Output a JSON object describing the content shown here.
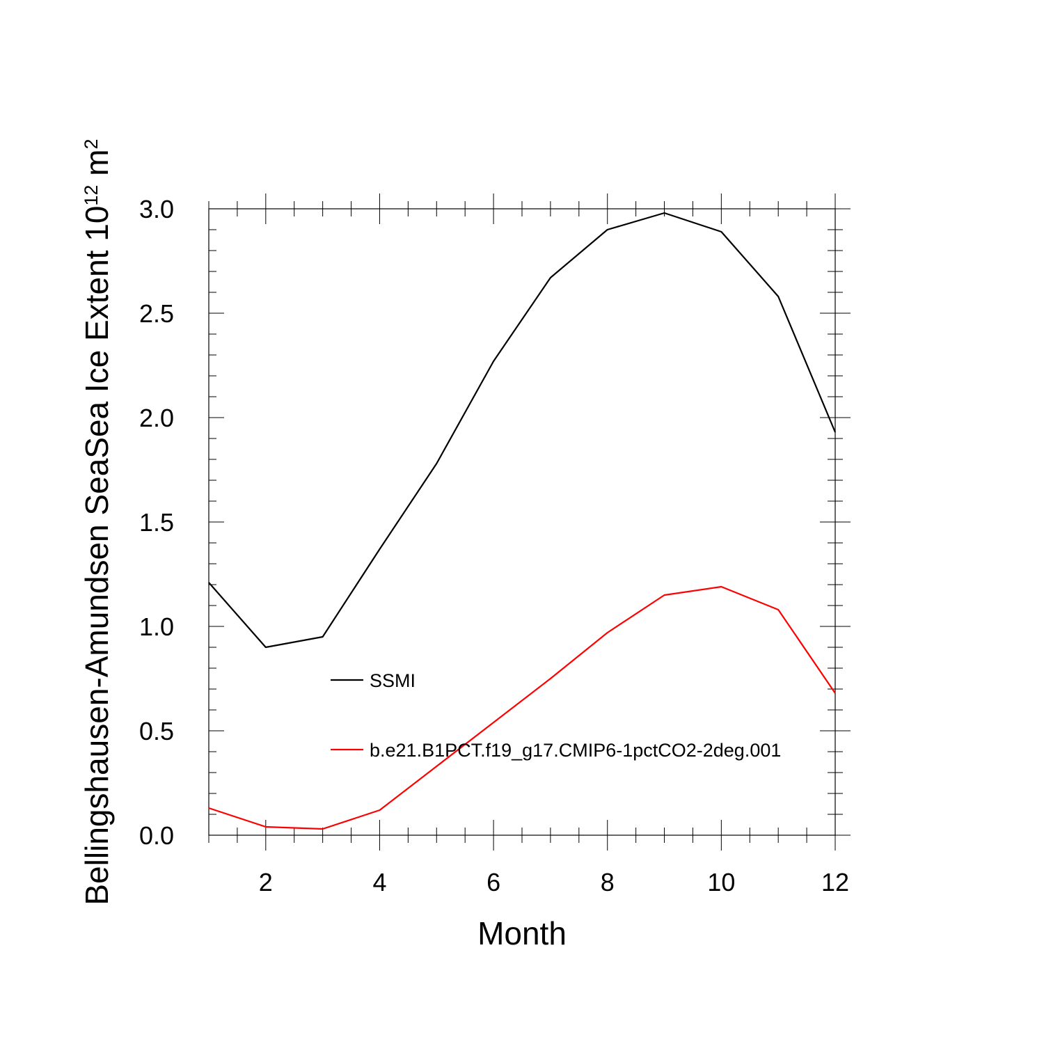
{
  "chart_data": {
    "type": "line",
    "xlabel": "Month",
    "ylabel": {
      "prefix": "Bellingshausen-Amundsen SeaSea Ice Extent 10",
      "sup1": "12",
      "mid": " m",
      "sup2": "2"
    },
    "xlim": [
      1,
      12
    ],
    "ylim": [
      0,
      3
    ],
    "x_ticks": [
      2,
      4,
      6,
      8,
      10,
      12
    ],
    "x_minor_step": 0.5,
    "y_ticks": [
      "0.0",
      "0.5",
      "1.0",
      "1.5",
      "2.0",
      "2.5",
      "3.0"
    ],
    "y_minor_step": 0.1,
    "grid": false,
    "legend_position": "inside-lower-middle",
    "x": [
      1,
      2,
      3,
      4,
      5,
      6,
      7,
      8,
      9,
      10,
      11,
      12
    ],
    "series": [
      {
        "name": "SSMI",
        "color": "#000000",
        "values": [
          1.21,
          0.9,
          0.95,
          1.37,
          1.78,
          2.27,
          2.67,
          2.9,
          2.98,
          2.89,
          2.58,
          1.93
        ]
      },
      {
        "name": "b.e21.B1PCT.f19_g17.CMIP6-1pctCO2-2deg.001",
        "color": "#ff0000",
        "values": [
          0.13,
          0.04,
          0.03,
          0.12,
          0.33,
          0.54,
          0.75,
          0.97,
          1.15,
          1.19,
          1.08,
          0.68
        ]
      }
    ]
  }
}
